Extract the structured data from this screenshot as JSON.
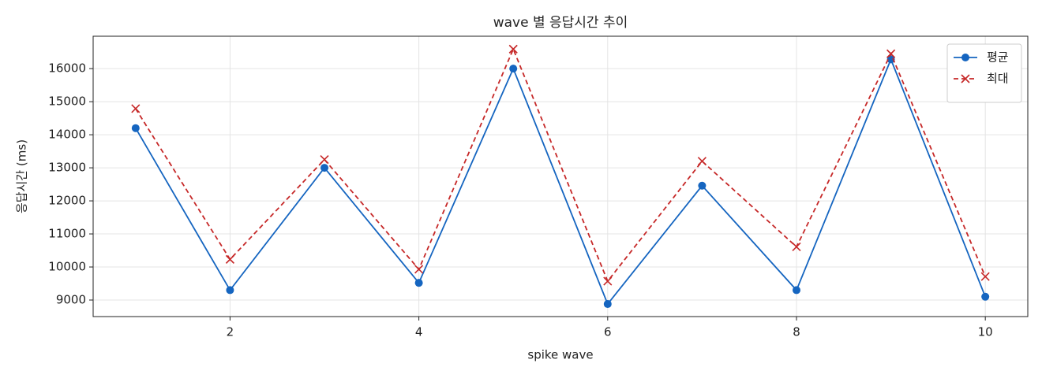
{
  "chart_data": {
    "type": "line",
    "title": "wave 별 응답시간 추이",
    "x_label": "spike wave",
    "y_label": "응답시간 (ms)",
    "x": [
      1,
      2,
      3,
      4,
      5,
      6,
      7,
      8,
      9,
      10
    ],
    "series": [
      {
        "name": "평균",
        "color": "#1565c0",
        "linestyle": "solid",
        "marker": "o",
        "values": [
          14200,
          9300,
          13000,
          9520,
          16000,
          8880,
          12460,
          9300,
          16280,
          9100
        ]
      },
      {
        "name": "최대",
        "color": "#c62828",
        "linestyle": "dashed",
        "marker": "x",
        "values": [
          14790,
          10230,
          13250,
          9930,
          16590,
          9570,
          13200,
          10610,
          16450,
          9710
        ]
      }
    ],
    "xlim": [
      0.55,
      10.45
    ],
    "ylim": [
      8500,
      16980
    ],
    "xticks": [
      2,
      4,
      6,
      8,
      10
    ],
    "yticks": [
      9000,
      10000,
      11000,
      12000,
      13000,
      14000,
      15000,
      16000
    ],
    "grid": true,
    "legend": "upper right"
  }
}
